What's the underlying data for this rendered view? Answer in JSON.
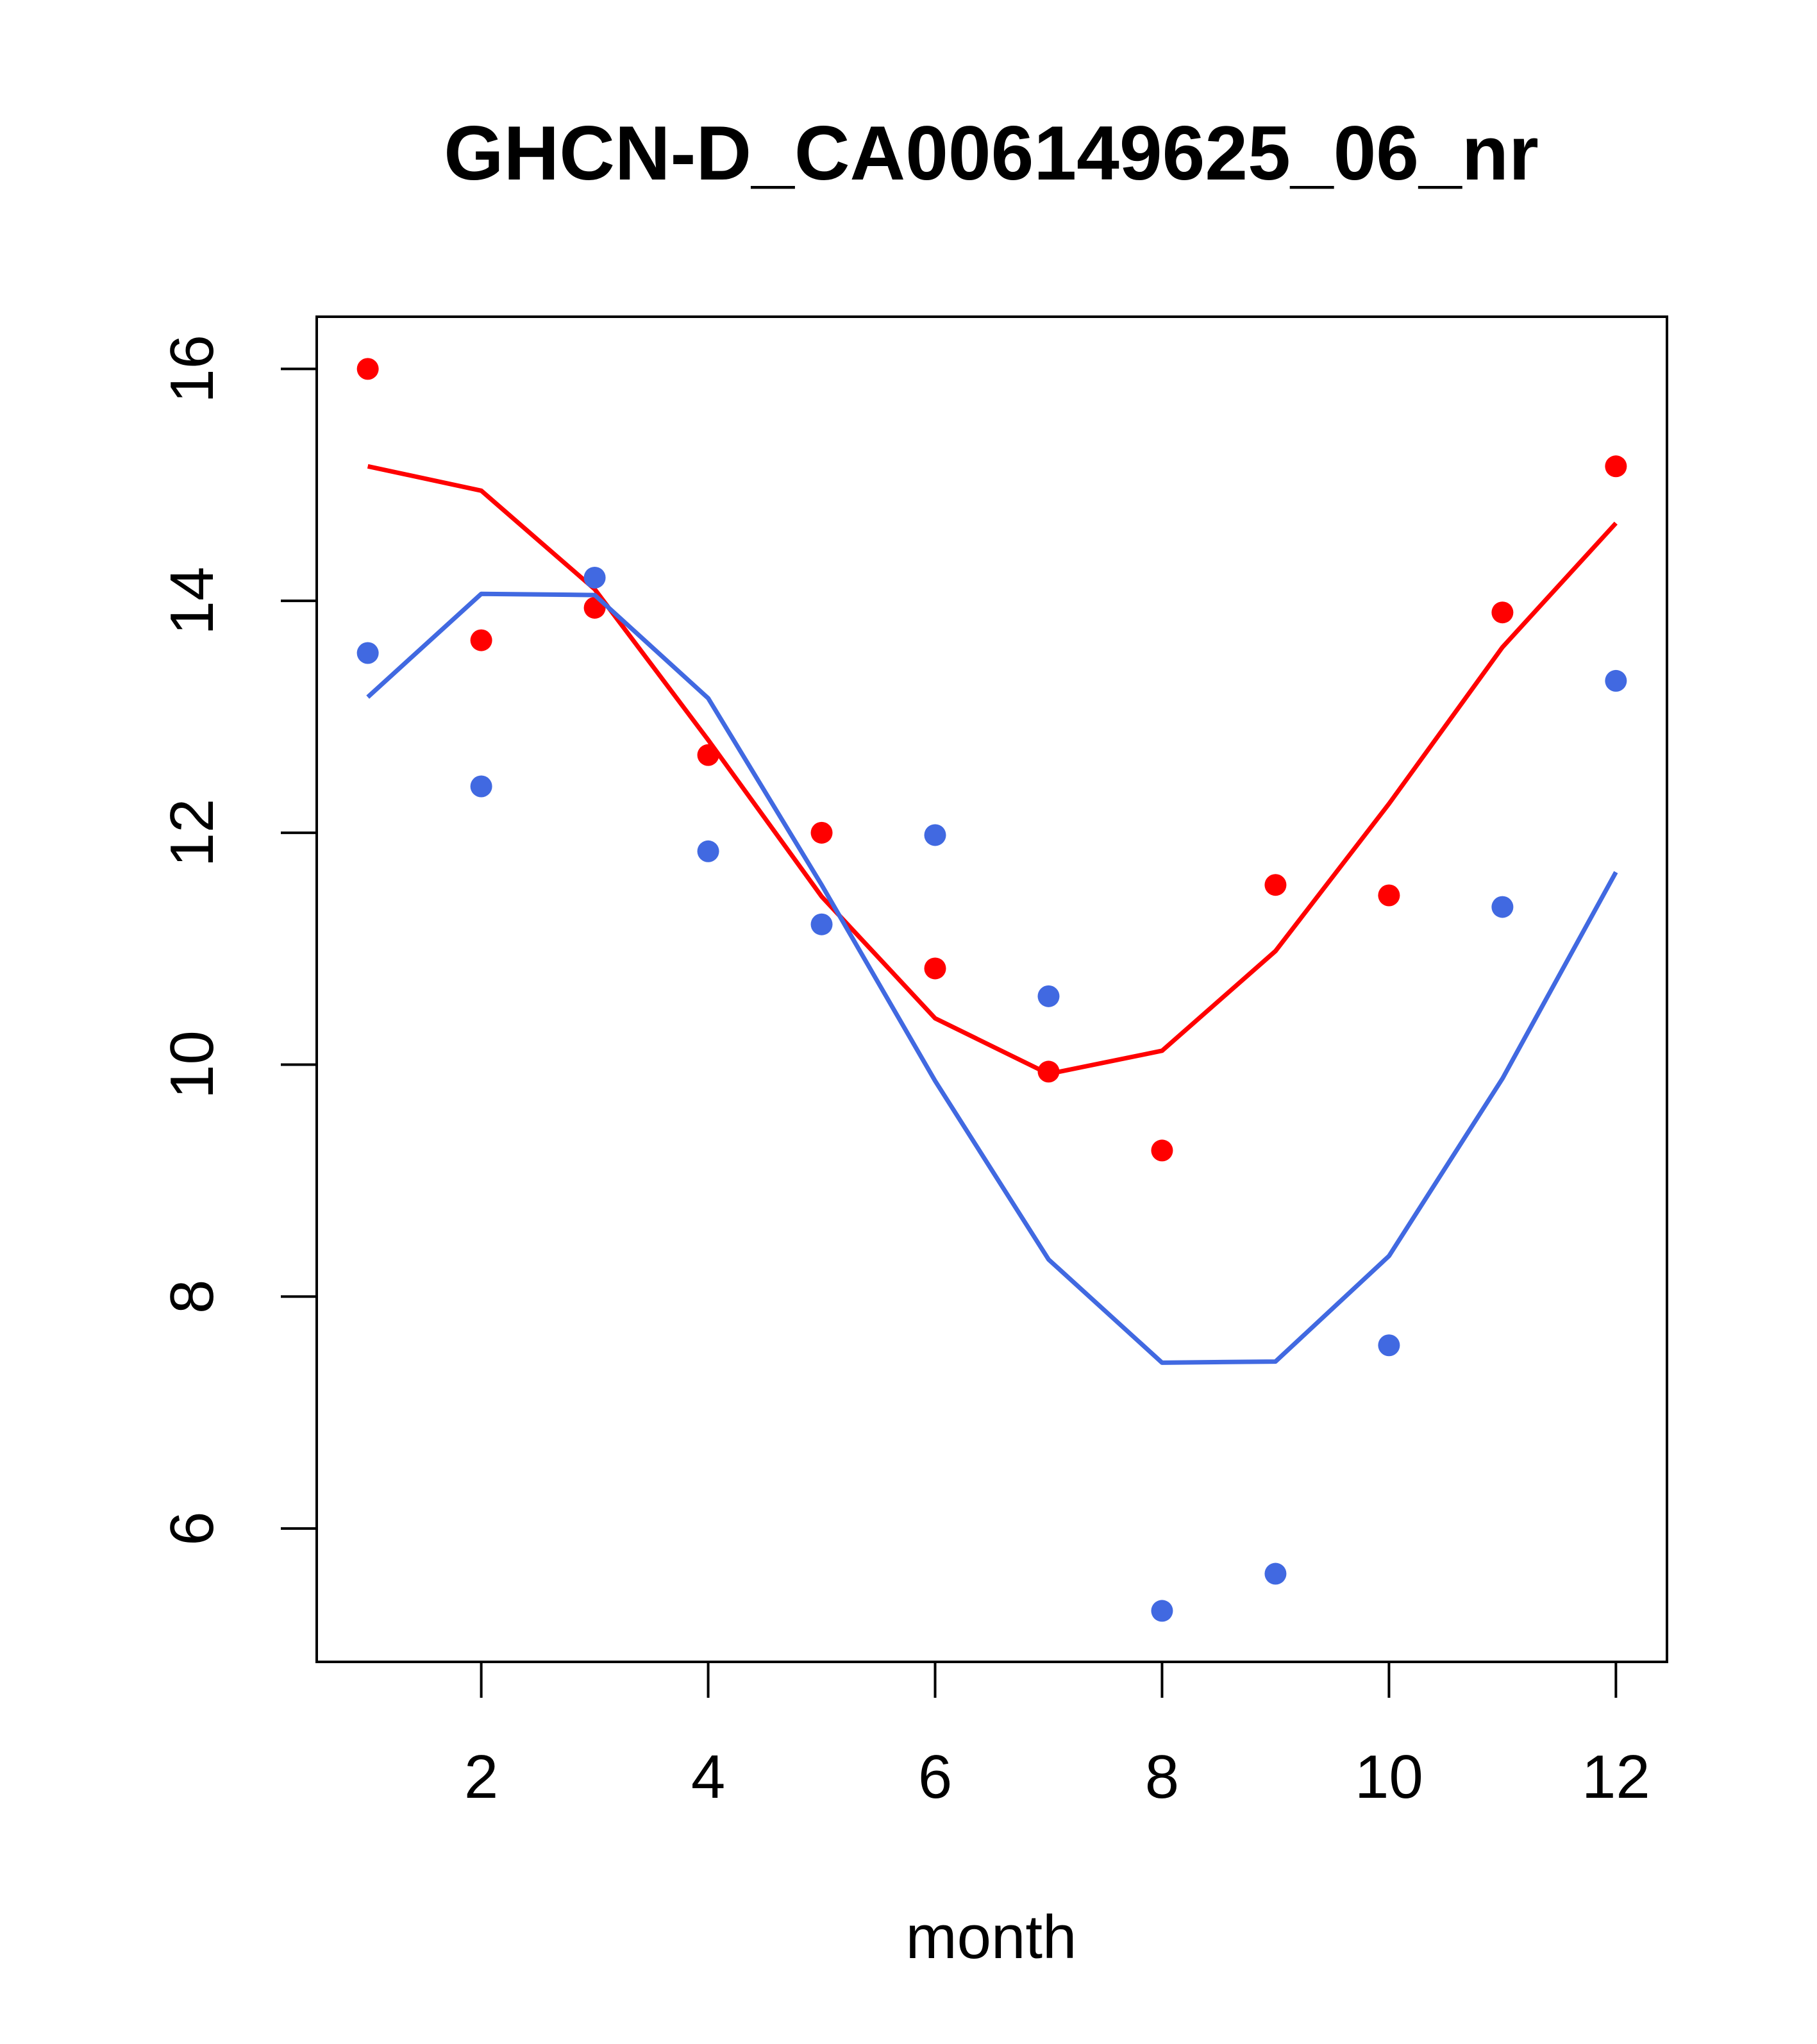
{
  "chart_data": {
    "type": "line",
    "title": "GHCN-D_CA006149625_06_nr",
    "xlabel": "month",
    "ylabel": "",
    "xlim": [
      0.55,
      12.45
    ],
    "ylim": [
      4.85,
      16.45
    ],
    "x_ticks": [
      2,
      4,
      6,
      8,
      10,
      12
    ],
    "y_ticks": [
      6,
      8,
      10,
      12,
      14,
      16
    ],
    "grid": false,
    "legend": "none",
    "x": [
      1,
      2,
      3,
      4,
      5,
      6,
      7,
      8,
      9,
      10,
      11,
      12
    ],
    "series": [
      {
        "color": "#ff0000",
        "points": [
          16.0,
          13.66,
          13.94,
          12.67,
          12.0,
          10.83,
          9.94,
          9.26,
          11.55,
          11.46,
          13.9,
          15.16
        ],
        "line": [
          15.16,
          14.95,
          14.1,
          12.8,
          11.45,
          10.4,
          9.92,
          10.12,
          10.98,
          12.25,
          13.6,
          14.67
        ]
      },
      {
        "color": "#4169e1",
        "points": [
          13.55,
          12.4,
          14.2,
          11.84,
          11.21,
          11.98,
          10.59,
          5.29,
          5.61,
          7.58,
          11.36,
          13.31
        ],
        "line": [
          13.17,
          14.06,
          14.05,
          13.16,
          11.55,
          9.86,
          8.32,
          7.43,
          7.44,
          8.35,
          9.88,
          11.66
        ]
      }
    ]
  }
}
